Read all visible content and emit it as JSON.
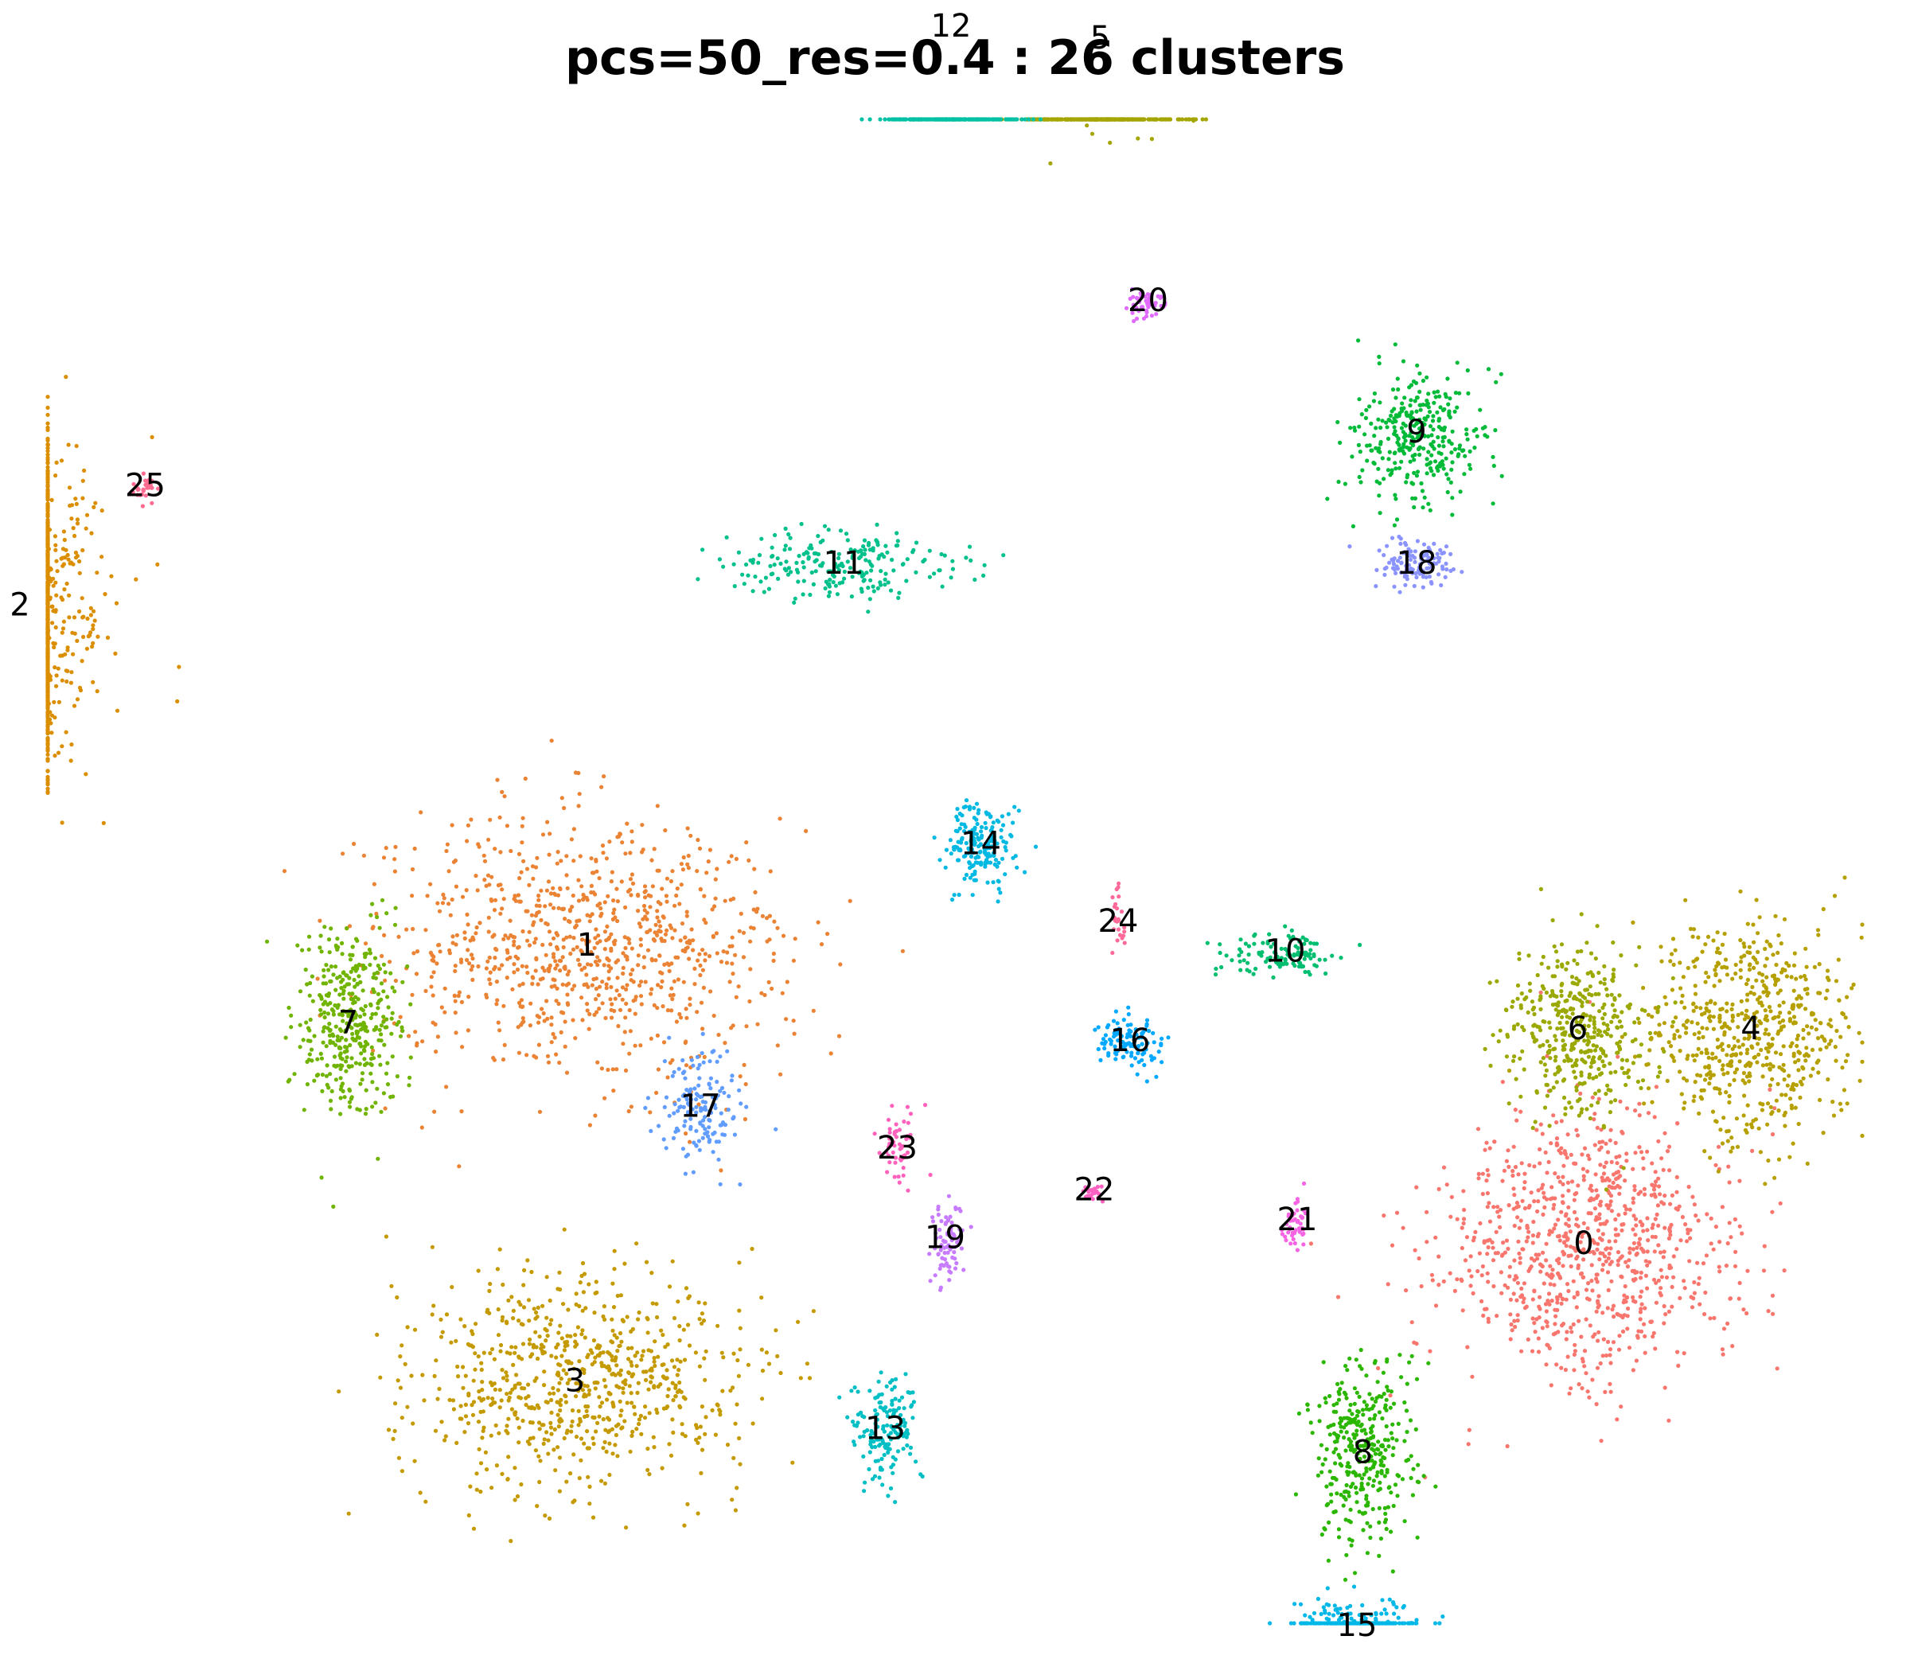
{
  "chart_data": {
    "type": "scatter",
    "title": "pcs=50_res=0.4 : 26 clusters",
    "xlabel": "",
    "ylabel": "",
    "grid": false,
    "axes_visible": false,
    "legend": "none",
    "clusters": [
      {
        "name": "0",
        "color": "#F8766D",
        "x": 12.4,
        "y": -5.8
      },
      {
        "name": "1",
        "color": "#EB8335",
        "x": -4.3,
        "y": -0.8
      },
      {
        "name": "2",
        "color": "#DB8E00",
        "x": -13.8,
        "y": 4.9
      },
      {
        "name": "3",
        "color": "#C49A00",
        "x": -4.5,
        "y": -8.1
      },
      {
        "name": "4",
        "color": "#B5A000",
        "x": 15.2,
        "y": -2.2
      },
      {
        "name": "5",
        "color": "#A4A500",
        "x": 4.3,
        "y": 14.4
      },
      {
        "name": "6",
        "color": "#9AA800",
        "x": 12.3,
        "y": -2.2
      },
      {
        "name": "7",
        "color": "#70B400",
        "x": -8.3,
        "y": -2.1
      },
      {
        "name": "8",
        "color": "#2BB600",
        "x": 8.7,
        "y": -9.3
      },
      {
        "name": "9",
        "color": "#00BA38",
        "x": 9.6,
        "y": 7.8
      },
      {
        "name": "10",
        "color": "#00BE70",
        "x": 7.4,
        "y": -0.9
      },
      {
        "name": "11",
        "color": "#00C08B",
        "x": 0.0,
        "y": 5.6
      },
      {
        "name": "12",
        "color": "#00C1A3",
        "x": 1.8,
        "y": 14.6
      },
      {
        "name": "13",
        "color": "#00BFC4",
        "x": 0.7,
        "y": -8.9
      },
      {
        "name": "14",
        "color": "#00B9E3",
        "x": 2.3,
        "y": 0.9
      },
      {
        "name": "15",
        "color": "#00B8E7",
        "x": 8.6,
        "y": -12.2
      },
      {
        "name": "16",
        "color": "#00A9FF",
        "x": 4.8,
        "y": -2.4
      },
      {
        "name": "17",
        "color": "#619CFF",
        "x": -2.4,
        "y": -3.5
      },
      {
        "name": "18",
        "color": "#8B93FF",
        "x": 9.6,
        "y": 5.6
      },
      {
        "name": "19",
        "color": "#C77CFF",
        "x": 1.7,
        "y": -5.7
      },
      {
        "name": "20",
        "color": "#E16BFF",
        "x": 5.1,
        "y": 10.0
      },
      {
        "name": "21",
        "color": "#F564E3",
        "x": 7.6,
        "y": -5.4
      },
      {
        "name": "22",
        "color": "#FF61C3",
        "x": 4.2,
        "y": -4.9
      },
      {
        "name": "23",
        "color": "#FF62BC",
        "x": 0.9,
        "y": -4.2
      },
      {
        "name": "24",
        "color": "#FF6A98",
        "x": 4.6,
        "y": -0.4
      },
      {
        "name": "25",
        "color": "#FF6C91",
        "x": -11.7,
        "y": 6.9
      }
    ]
  }
}
